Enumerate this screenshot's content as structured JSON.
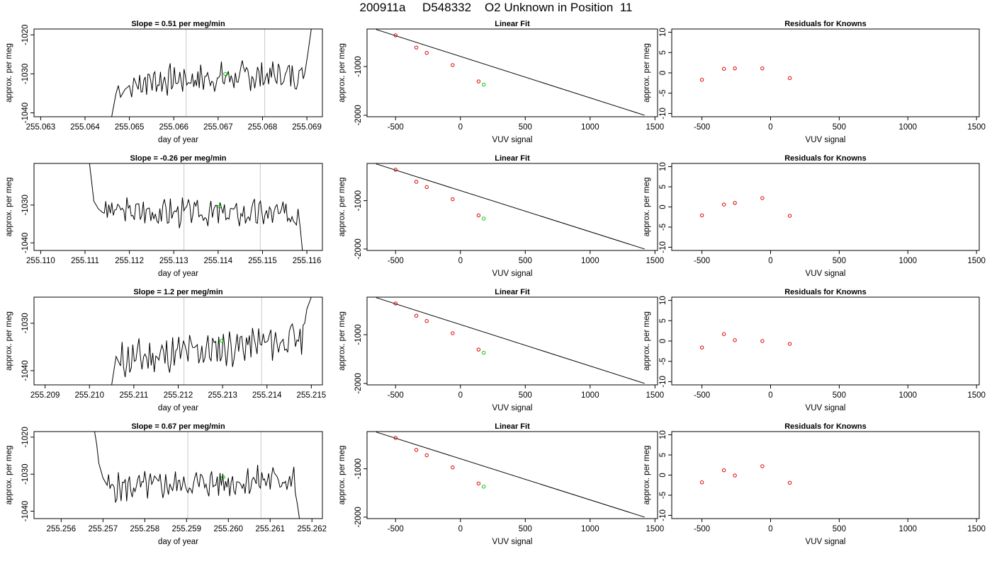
{
  "figure": {
    "title": "200911a     D548332    O2 Unknown in Position  11"
  },
  "chart_data": [
    {
      "type": "line",
      "kind": "trace",
      "title": "Slope =  0.51  per meg/min",
      "xlabel": "day of year",
      "ylabel": "approx. per meg",
      "xlim": [
        255.06285,
        255.06935
      ],
      "ylim": [
        -1041,
        -1018.5
      ],
      "xticks": [
        "255.063",
        "255.064",
        "255.065",
        "255.066",
        "255.067",
        "255.068",
        "255.069"
      ],
      "yticks": [
        -1040,
        -1030,
        -1020
      ],
      "vlines": [
        255.06628,
        255.06805
      ],
      "green_point": {
        "x": 255.06716,
        "y": -1030.0
      },
      "trace": {
        "start": 255.0646,
        "end": 255.0691,
        "n": 120,
        "base": -1031,
        "slope": 0.51,
        "seed": 7,
        "x": [
          255.0646,
          255.06465,
          255.0647,
          255.06475,
          255.0648,
          255.0649,
          255.065,
          255.06505,
          255.0651,
          255.0652
        ],
        "y": [
          -1041,
          -1038,
          -1035,
          -1033,
          -1036,
          -1034,
          -1033,
          -1036,
          -1031,
          -1034
        ],
        "x_end": [
          255.06895,
          255.06902,
          255.0691
        ],
        "y_end": [
          -1030,
          -1025,
          -1018.5
        ]
      }
    },
    {
      "type": "scatter",
      "kind": "fit",
      "title": "Linear Fit",
      "xlabel": "VUV signal",
      "ylabel": "approx. per meg",
      "xlim": [
        -720,
        1520
      ],
      "ylim": [
        -2030,
        -230
      ],
      "xticks": [
        -500,
        0,
        500,
        1000,
        1500
      ],
      "yticks": [
        -2000,
        -1000
      ],
      "knowns": {
        "x": [
          -500,
          -340,
          -260,
          -60,
          140
        ],
        "y": [
          -360,
          -610,
          -720,
          -970,
          -1305
        ]
      },
      "unknown": {
        "x": 180,
        "y": -1370
      },
      "fit_line": {
        "x": [
          -650,
          1420
        ],
        "y": [
          -240,
          -2000
        ]
      }
    },
    {
      "type": "scatter",
      "kind": "resid",
      "title": "Residuals for Knowns",
      "xlabel": "VUV signal",
      "ylabel": "approx. per meg",
      "xlim": [
        -720,
        1520
      ],
      "ylim": [
        -10.8,
        10.8
      ],
      "xticks": [
        -500,
        0,
        500,
        1000,
        1500
      ],
      "yticks": [
        -10,
        -5,
        0,
        5,
        10
      ],
      "points": {
        "x": [
          -500,
          -340,
          -260,
          -60,
          140
        ],
        "y": [
          -1.7,
          1.0,
          1.1,
          1.1,
          -1.3
        ]
      }
    },
    {
      "type": "line",
      "kind": "trace",
      "title": "Slope =  -0.26  per meg/min",
      "xlabel": "day of year",
      "ylabel": "approx. per meg",
      "xlim": [
        255.10985,
        255.11635
      ],
      "ylim": [
        -1042,
        -1019
      ],
      "xticks": [
        "255.110",
        "255.111",
        "255.112",
        "255.113",
        "255.114",
        "255.115",
        "255.116"
      ],
      "yticks": [
        -1040,
        -1030
      ],
      "vlines": [
        255.11323,
        255.11495
      ],
      "green_point": {
        "x": 255.11403,
        "y": -1030.4
      },
      "trace": {
        "start": 255.1111,
        "end": 255.1159,
        "n": 130,
        "base": -1032,
        "slope": -0.26,
        "seed": 3,
        "x": [
          255.1111,
          255.11115,
          255.1112,
          255.11125,
          255.1113,
          255.1114
        ],
        "y": [
          -1019,
          -1024,
          -1029,
          -1030,
          -1031,
          -1032
        ],
        "x_end": [
          255.1158,
          255.11585,
          255.1159
        ],
        "y_end": [
          -1031,
          -1036,
          -1042
        ]
      }
    },
    {
      "type": "scatter",
      "kind": "fit",
      "title": "Linear Fit",
      "xlabel": "VUV signal",
      "ylabel": "approx. per meg",
      "xlim": [
        -720,
        1520
      ],
      "ylim": [
        -2030,
        -230
      ],
      "xticks": [
        -500,
        0,
        500,
        1000,
        1500
      ],
      "yticks": [
        -2000,
        -1000
      ],
      "knowns": {
        "x": [
          -500,
          -340,
          -260,
          -60,
          140
        ],
        "y": [
          -360,
          -610,
          -720,
          -970,
          -1305
        ]
      },
      "unknown": {
        "x": 180,
        "y": -1370
      },
      "fit_line": {
        "x": [
          -650,
          1420
        ],
        "y": [
          -240,
          -2000
        ]
      }
    },
    {
      "type": "scatter",
      "kind": "resid",
      "title": "Residuals for Knowns",
      "xlabel": "VUV signal",
      "ylabel": "approx. per meg",
      "xlim": [
        -720,
        1520
      ],
      "ylim": [
        -10.8,
        10.8
      ],
      "xticks": [
        -500,
        0,
        500,
        1000,
        1500
      ],
      "yticks": [
        -10,
        -5,
        0,
        5,
        10
      ],
      "points": {
        "x": [
          -500,
          -340,
          -260,
          -60,
          140
        ],
        "y": [
          -2.1,
          0.6,
          1.0,
          2.2,
          -2.2
        ]
      }
    },
    {
      "type": "line",
      "kind": "trace",
      "title": "Slope =  1.2  per meg/min",
      "xlabel": "day of year",
      "ylabel": "approx. per meg",
      "xlim": [
        255.20875,
        255.21525
      ],
      "ylim": [
        -1043,
        -1024.5
      ],
      "xticks": [
        "255.209",
        "255.210",
        "255.211",
        "255.212",
        "255.213",
        "255.214",
        "255.215"
      ],
      "yticks": [
        -1040,
        -1030
      ],
      "vlines": [
        255.21213,
        255.21388
      ],
      "green_point": {
        "x": 255.21298,
        "y": -1033.7
      },
      "trace": {
        "start": 255.2105,
        "end": 255.215,
        "n": 120,
        "base": -1035.5,
        "slope": 1.2,
        "seed": 11,
        "x": [
          255.2105,
          255.21055,
          255.2106,
          255.2107
        ],
        "y": [
          -1043,
          -1040,
          -1037,
          -1039
        ],
        "x_end": [
          255.21485,
          255.2149,
          255.215
        ],
        "y_end": [
          -1030,
          -1027,
          -1024.5
        ]
      }
    },
    {
      "type": "scatter",
      "kind": "fit",
      "title": "Linear Fit",
      "xlabel": "VUV signal",
      "ylabel": "approx. per meg",
      "xlim": [
        -720,
        1520
      ],
      "ylim": [
        -2030,
        -230
      ],
      "xticks": [
        -500,
        0,
        500,
        1000,
        1500
      ],
      "yticks": [
        -2000,
        -1000
      ],
      "knowns": {
        "x": [
          -500,
          -340,
          -260,
          -60,
          140
        ],
        "y": [
          -360,
          -610,
          -720,
          -970,
          -1305
        ]
      },
      "unknown": {
        "x": 180,
        "y": -1370
      },
      "fit_line": {
        "x": [
          -650,
          1420
        ],
        "y": [
          -240,
          -2000
        ]
      }
    },
    {
      "type": "scatter",
      "kind": "resid",
      "title": "Residuals for Knowns",
      "xlabel": "VUV signal",
      "ylabel": "approx. per meg",
      "xlim": [
        -720,
        1520
      ],
      "ylim": [
        -10.8,
        10.8
      ],
      "xticks": [
        -500,
        0,
        500,
        1000,
        1500
      ],
      "yticks": [
        -10,
        -5,
        0,
        5,
        10
      ],
      "points": {
        "x": [
          -500,
          -340,
          -260,
          -60,
          140
        ],
        "y": [
          -1.6,
          1.7,
          0.2,
          0.0,
          -0.7
        ]
      }
    },
    {
      "type": "line",
      "kind": "trace",
      "title": "Slope =  0.67  per meg/min",
      "xlabel": "day of year",
      "ylabel": "approx. per meg",
      "xlim": [
        255.25535,
        255.26225
      ],
      "ylim": [
        -1042,
        -1018.5
      ],
      "xticks": [
        "255.256",
        "255.257",
        "255.258",
        "255.259",
        "255.260",
        "255.261",
        "255.262"
      ],
      "yticks": [
        -1040,
        -1030,
        -1020
      ],
      "vlines": [
        255.25903,
        255.26078
      ],
      "green_point": {
        "x": 255.25988,
        "y": -1030.8
      },
      "trace": {
        "start": 255.2568,
        "end": 255.2617,
        "n": 135,
        "base": -1032.5,
        "slope": 0.67,
        "seed": 5,
        "x": [
          255.2568,
          255.25685,
          255.2569,
          255.257,
          255.2571
        ],
        "y": [
          -1018.5,
          -1022,
          -1027,
          -1031,
          -1033
        ],
        "x_end": [
          255.2616,
          255.26165,
          255.2617
        ],
        "y_end": [
          -1035,
          -1038,
          -1042
        ]
      }
    },
    {
      "type": "scatter",
      "kind": "fit",
      "title": "Linear Fit",
      "xlabel": "VUV signal",
      "ylabel": "approx. per meg",
      "xlim": [
        -720,
        1520
      ],
      "ylim": [
        -2030,
        -230
      ],
      "xticks": [
        -500,
        0,
        500,
        1000,
        1500
      ],
      "yticks": [
        -2000,
        -1000
      ],
      "knowns": {
        "x": [
          -500,
          -340,
          -260,
          -60,
          140
        ],
        "y": [
          -360,
          -610,
          -720,
          -970,
          -1305
        ]
      },
      "unknown": {
        "x": 180,
        "y": -1370
      },
      "fit_line": {
        "x": [
          -650,
          1420
        ],
        "y": [
          -240,
          -2000
        ]
      }
    },
    {
      "type": "scatter",
      "kind": "resid",
      "title": "Residuals for Knowns",
      "xlabel": "VUV signal",
      "ylabel": "approx. per meg",
      "xlim": [
        -720,
        1520
      ],
      "ylim": [
        -10.8,
        10.8
      ],
      "xticks": [
        -500,
        0,
        500,
        1000,
        1500
      ],
      "yticks": [
        -10,
        -5,
        0,
        5,
        10
      ],
      "points": {
        "x": [
          -500,
          -340,
          -260,
          -60,
          140
        ],
        "y": [
          -1.8,
          1.2,
          -0.1,
          2.2,
          -1.9
        ]
      }
    }
  ],
  "colors": {
    "trace": "#000000",
    "known_points": "#dd0000",
    "unknown_point": "#00cc00",
    "vline": "#c8c8c8",
    "axis": "#000000"
  }
}
